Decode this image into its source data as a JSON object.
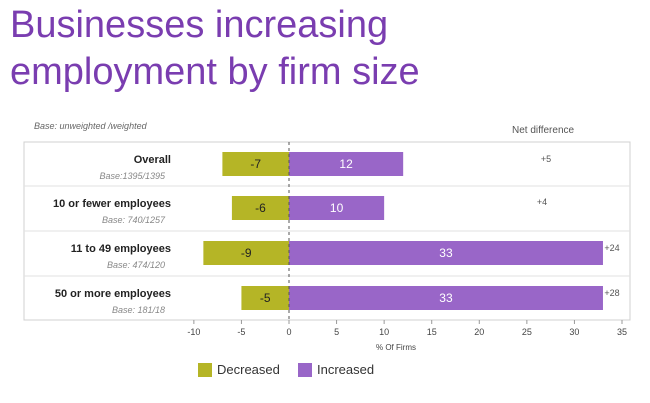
{
  "title_line1": "Businesses increasing",
  "title_line2": "employment by firm size",
  "base_note": "Base: unweighted /weighted",
  "net_header": "Net difference",
  "colors": {
    "decreased": "#b5b526",
    "increased": "#9966c8",
    "title": "#7a3db0"
  },
  "chart_data": {
    "type": "bar",
    "orientation": "horizontal",
    "stacked": "diverging",
    "categories": [
      {
        "label": "Overall",
        "base": "Base:1395/1395"
      },
      {
        "label": "10 or fewer employees",
        "base": "Base: 740/1257"
      },
      {
        "label": "11 to 49 employees",
        "base": "Base: 474/120"
      },
      {
        "label": "50 or more employees",
        "base": "Base: 181/18"
      }
    ],
    "series": [
      {
        "name": "Decreased",
        "values": [
          -7,
          -6,
          -9,
          -5
        ]
      },
      {
        "name": "Increased",
        "values": [
          12,
          10,
          33,
          33
        ]
      }
    ],
    "net_difference": [
      "+5",
      "+4",
      "+24",
      "+28"
    ],
    "xlabel": "% Of Firms",
    "xlim": [
      -12,
      35
    ],
    "xticks": [
      -10,
      -5,
      0,
      5,
      10,
      15,
      20,
      25,
      30,
      35
    ],
    "legend_position": "bottom"
  }
}
